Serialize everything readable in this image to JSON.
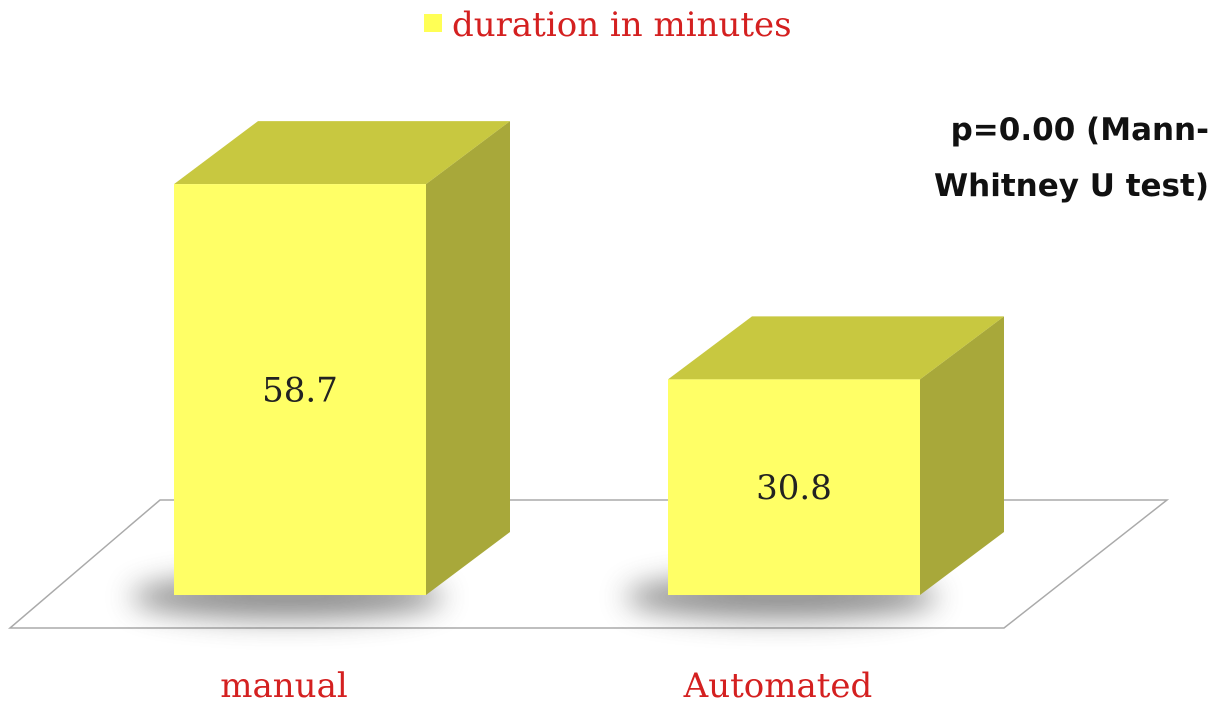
{
  "chart_data": {
    "type": "bar",
    "categories": [
      "manual",
      "Automated"
    ],
    "series": [
      {
        "name": "duration in minutes",
        "values": [
          58.7,
          30.8
        ]
      }
    ],
    "legend": {
      "position": "top",
      "entries": [
        "duration in minutes"
      ]
    },
    "data_labels": [
      "58.7",
      "30.8"
    ],
    "annotation": {
      "lines": [
        "p=0.00 (Mann-",
        "Whitney U test)"
      ]
    },
    "title": "",
    "xlabel": "",
    "ylabel": "",
    "ylim": [
      0,
      70
    ],
    "grid": false,
    "style": "3d-column"
  },
  "colors": {
    "bar_front": "#ffff66",
    "bar_top": "#c8c840",
    "bar_side": "#a8a83a",
    "legend_swatch": "#ffff55",
    "label_red": "#d42020",
    "floor_edge": "#aaaaaa"
  }
}
